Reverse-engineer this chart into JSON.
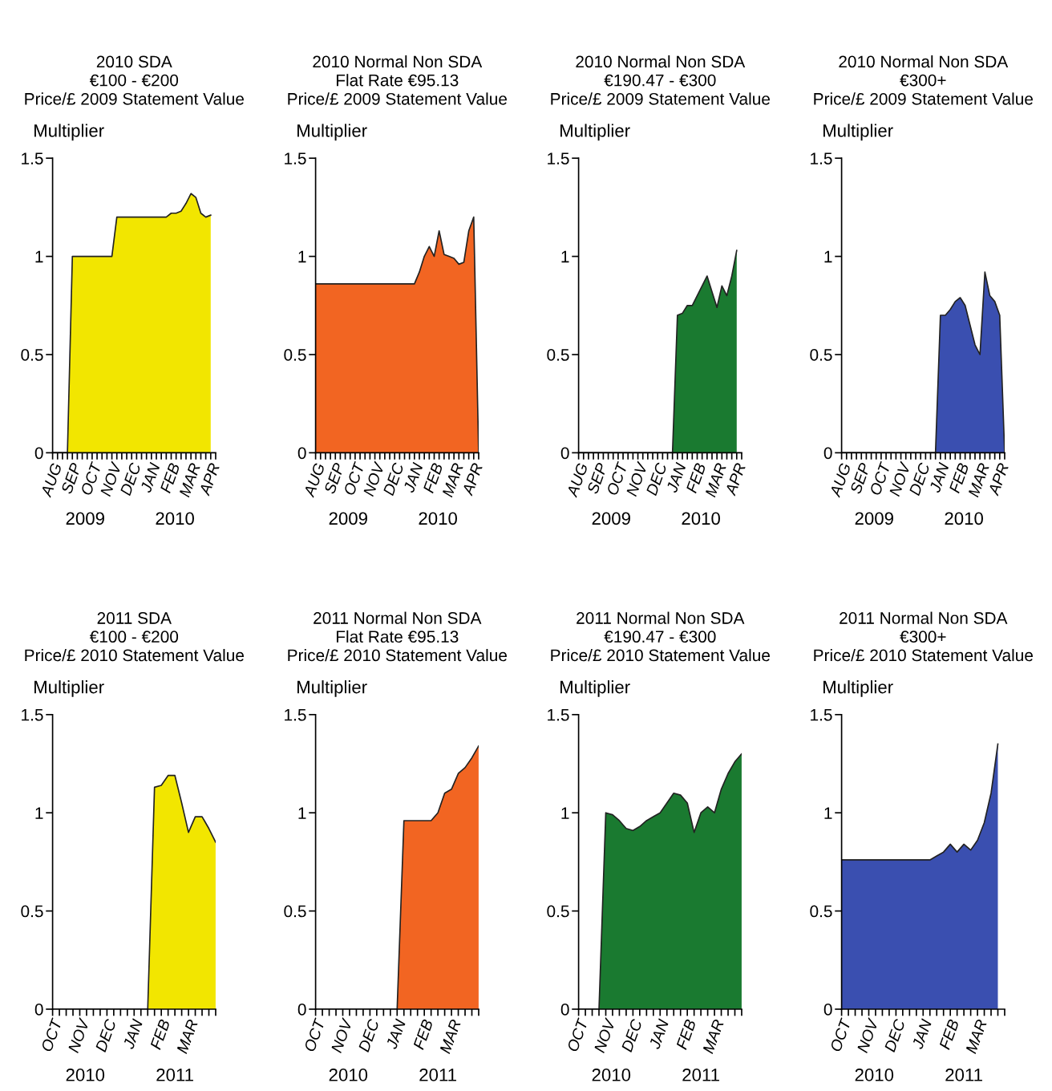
{
  "chart_data": [
    {
      "type": "area",
      "title": "2010 SDA",
      "subtitle": "€100 - €200\nPrice/£ 2009 Statement Value",
      "ylabel": "Multiplier",
      "annotations": [
        "2009",
        "2010"
      ],
      "categories": [
        "AUG",
        null,
        null,
        null,
        "SEP",
        null,
        null,
        null,
        "OCT",
        null,
        null,
        null,
        "NOV",
        null,
        null,
        null,
        "DEC",
        null,
        null,
        null,
        "JAN",
        null,
        null,
        null,
        "FEB",
        null,
        null,
        null,
        "MAR",
        null,
        null,
        null,
        "APR",
        null
      ],
      "series": [
        {
          "color": "#f2e600",
          "values": [
            0,
            0,
            0,
            0,
            1.0,
            1.0,
            1.0,
            1.0,
            1.0,
            1.0,
            1.0,
            1.0,
            1.0,
            1.2,
            1.2,
            1.2,
            1.2,
            1.2,
            1.2,
            1.2,
            1.2,
            1.2,
            1.2,
            1.2,
            1.22,
            1.22,
            1.23,
            1.27,
            1.32,
            1.3,
            1.22,
            1.2,
            1.21,
            null
          ]
        }
      ],
      "ylim": [
        0,
        1.5
      ],
      "yticks": [
        0,
        0.5,
        1,
        1.5
      ]
    },
    {
      "type": "area",
      "title": "2010 Normal Non SDA",
      "subtitle": "Flat Rate €95.13\nPrice/£ 2009 Statement Value",
      "ylabel": "Multiplier",
      "annotations": [
        "2009",
        "2010"
      ],
      "categories": [
        "AUG",
        null,
        null,
        null,
        "SEP",
        null,
        null,
        null,
        "OCT",
        null,
        null,
        null,
        "NOV",
        null,
        null,
        null,
        "DEC",
        null,
        null,
        null,
        "JAN",
        null,
        null,
        null,
        "FEB",
        null,
        null,
        null,
        "MAR",
        null,
        null,
        null,
        "APR",
        null
      ],
      "series": [
        {
          "color": "#f26522",
          "values": [
            0.86,
            0.86,
            0.86,
            0.86,
            0.86,
            0.86,
            0.86,
            0.86,
            0.86,
            0.86,
            0.86,
            0.86,
            0.86,
            0.86,
            0.86,
            0.86,
            0.86,
            0.86,
            0.86,
            0.86,
            0.86,
            0.92,
            1.0,
            1.05,
            1.0,
            1.13,
            1.01,
            1.0,
            0.99,
            0.96,
            0.97,
            1.13,
            1.2,
            0
          ]
        }
      ],
      "ylim": [
        0,
        1.5
      ],
      "yticks": [
        0,
        0.5,
        1,
        1.5
      ]
    },
    {
      "type": "area",
      "title": "2010 Normal Non SDA",
      "subtitle": "€190.47 - €300\nPrice/£ 2009 Statement Value",
      "ylabel": "Multiplier",
      "annotations": [
        "2009",
        "2010"
      ],
      "categories": [
        "AUG",
        null,
        null,
        null,
        "SEP",
        null,
        null,
        null,
        "OCT",
        null,
        null,
        null,
        "NOV",
        null,
        null,
        null,
        "DEC",
        null,
        null,
        null,
        "JAN",
        null,
        null,
        null,
        "FEB",
        null,
        null,
        null,
        "MAR",
        null,
        null,
        null,
        "APR",
        null
      ],
      "series": [
        {
          "color": "#1a7a30",
          "values": [
            0,
            0,
            0,
            0,
            0,
            0,
            0,
            0,
            0,
            0,
            0,
            0,
            0,
            0,
            0,
            0,
            0,
            0,
            0,
            0,
            0.7,
            0.71,
            0.75,
            0.75,
            0.8,
            0.85,
            0.9,
            0.82,
            0.74,
            0.85,
            0.8,
            0.9,
            1.03,
            null
          ]
        }
      ],
      "ylim": [
        0,
        1.5
      ],
      "yticks": [
        0,
        0.5,
        1,
        1.5
      ]
    },
    {
      "type": "area",
      "title": "2010 Normal Non SDA",
      "subtitle": "€300+\nPrice/£ 2009 Statement Value",
      "ylabel": "Multiplier",
      "annotations": [
        "2009",
        "2010"
      ],
      "categories": [
        "AUG",
        null,
        null,
        null,
        "SEP",
        null,
        null,
        null,
        "OCT",
        null,
        null,
        null,
        "NOV",
        null,
        null,
        null,
        "DEC",
        null,
        null,
        null,
        "JAN",
        null,
        null,
        null,
        "FEB",
        null,
        null,
        null,
        "MAR",
        null,
        null,
        null,
        "APR",
        null
      ],
      "series": [
        {
          "color": "#3a4fb0",
          "values": [
            0,
            0,
            0,
            0,
            0,
            0,
            0,
            0,
            0,
            0,
            0,
            0,
            0,
            0,
            0,
            0,
            0,
            0,
            0,
            0,
            0.7,
            0.7,
            0.73,
            0.77,
            0.79,
            0.75,
            0.65,
            0.55,
            0.5,
            0.92,
            0.8,
            0.77,
            0.7,
            0
          ]
        }
      ],
      "ylim": [
        0,
        1.5
      ],
      "yticks": [
        0,
        0.5,
        1,
        1.5
      ]
    },
    {
      "type": "area",
      "title": "2011 SDA",
      "subtitle": "€100 - €200\nPrice/£ 2010 Statement Value",
      "ylabel": "Multiplier",
      "annotations": [
        "2010",
        "2011"
      ],
      "categories": [
        "OCT",
        null,
        null,
        null,
        "NOV",
        null,
        null,
        null,
        "DEC",
        null,
        null,
        null,
        "JAN",
        null,
        null,
        null,
        "FEB",
        null,
        null,
        null,
        "MAR",
        null,
        null,
        null,
        null
      ],
      "series": [
        {
          "color": "#f2e600",
          "values": [
            0,
            0,
            0,
            0,
            0,
            0,
            0,
            0,
            0,
            0,
            0,
            0,
            0,
            0,
            0,
            1.13,
            1.14,
            1.19,
            1.19,
            1.05,
            0.9,
            0.98,
            0.98,
            0.92,
            0.85
          ]
        }
      ],
      "ylim": [
        0,
        1.5
      ],
      "yticks": [
        0,
        0.5,
        1,
        1.5
      ]
    },
    {
      "type": "area",
      "title": "2011 Normal Non SDA",
      "subtitle": "Flat Rate €95.13\nPrice/£ 2010 Statement Value",
      "ylabel": "Multiplier",
      "annotations": [
        "2010",
        "2011"
      ],
      "categories": [
        "OCT",
        null,
        null,
        null,
        "NOV",
        null,
        null,
        null,
        "DEC",
        null,
        null,
        null,
        "JAN",
        null,
        null,
        null,
        "FEB",
        null,
        null,
        null,
        "MAR",
        null,
        null,
        null,
        null
      ],
      "series": [
        {
          "color": "#f26522",
          "values": [
            0,
            0,
            0,
            0,
            0,
            0,
            0,
            0,
            0,
            0,
            0,
            0,
            0,
            0.96,
            0.96,
            0.96,
            0.96,
            0.96,
            1.0,
            1.1,
            1.12,
            1.2,
            1.23,
            1.28,
            1.34
          ]
        }
      ],
      "ylim": [
        0,
        1.5
      ],
      "yticks": [
        0,
        0.5,
        1,
        1.5
      ]
    },
    {
      "type": "area",
      "title": "2011 Normal Non SDA",
      "subtitle": "€190.47 - €300\nPrice/£ 2010 Statement Value",
      "ylabel": "Multiplier",
      "annotations": [
        "2010",
        "2011"
      ],
      "categories": [
        "OCT",
        null,
        null,
        null,
        "NOV",
        null,
        null,
        null,
        "DEC",
        null,
        null,
        null,
        "JAN",
        null,
        null,
        null,
        "FEB",
        null,
        null,
        null,
        "MAR",
        null,
        null,
        null,
        null
      ],
      "series": [
        {
          "color": "#1a7a30",
          "values": [
            0,
            0,
            0,
            0,
            1.0,
            0.99,
            0.96,
            0.92,
            0.91,
            0.93,
            0.96,
            0.98,
            1.0,
            1.05,
            1.1,
            1.09,
            1.05,
            0.9,
            1.0,
            1.03,
            1.0,
            1.12,
            1.2,
            1.26,
            1.3
          ]
        }
      ],
      "ylim": [
        0,
        1.5
      ],
      "yticks": [
        0,
        0.5,
        1,
        1.5
      ]
    },
    {
      "type": "area",
      "title": "2011 Normal Non SDA",
      "subtitle": "€300+\nPrice/£ 2010 Statement Value",
      "ylabel": "Multiplier",
      "annotations": [
        "2010",
        "2011"
      ],
      "categories": [
        "OCT",
        null,
        null,
        null,
        "NOV",
        null,
        null,
        null,
        "DEC",
        null,
        null,
        null,
        "JAN",
        null,
        null,
        null,
        "FEB",
        null,
        null,
        null,
        "MAR",
        null,
        null,
        null,
        null
      ],
      "series": [
        {
          "color": "#3a4fb0",
          "values": [
            0.76,
            0.76,
            0.76,
            0.76,
            0.76,
            0.76,
            0.76,
            0.76,
            0.76,
            0.76,
            0.76,
            0.76,
            0.76,
            0.76,
            0.78,
            0.8,
            0.84,
            0.8,
            0.84,
            0.81,
            0.86,
            0.95,
            1.1,
            1.35,
            null
          ]
        }
      ],
      "ylim": [
        0,
        1.5
      ],
      "yticks": [
        0,
        0.5,
        1,
        1.5
      ]
    }
  ]
}
